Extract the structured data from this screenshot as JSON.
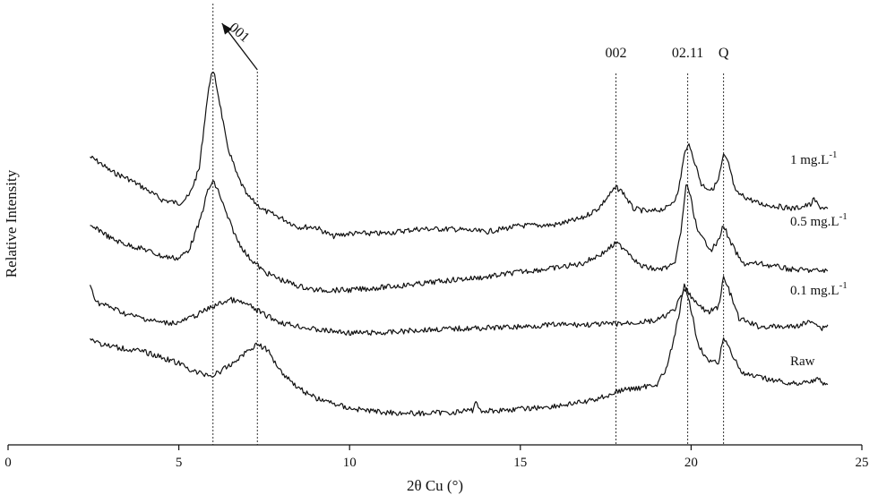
{
  "chart_data": {
    "type": "line",
    "title": "",
    "xlabel": "2θ Cu (°)",
    "ylabel": "Relative Intensity",
    "xlim": [
      0,
      25
    ],
    "xticks": [
      0,
      5,
      10,
      15,
      20,
      25
    ],
    "ylim": [
      0,
      1
    ],
    "y_ticks_shown": false,
    "grid": false,
    "legend": "labels to the right of each curve",
    "peak_markers": [
      {
        "label": "001",
        "x": 6.0,
        "arrow_from_x": 7.3
      },
      {
        "label": "",
        "x": 7.3
      },
      {
        "label": "002",
        "x": 17.8
      },
      {
        "label": "02.11",
        "x": 19.9
      },
      {
        "label": "Q",
        "x": 20.95
      }
    ],
    "series": [
      {
        "name": "1 mg.L",
        "name_superscript": "-1",
        "points": [
          [
            2.4,
            0.707
          ],
          [
            2.7,
            0.692
          ],
          [
            3.0,
            0.672
          ],
          [
            3.5,
            0.654
          ],
          [
            4.0,
            0.63
          ],
          [
            4.5,
            0.602
          ],
          [
            5.0,
            0.593
          ],
          [
            5.3,
            0.611
          ],
          [
            5.6,
            0.679
          ],
          [
            5.8,
            0.828
          ],
          [
            5.95,
            0.915
          ],
          [
            6.05,
            0.905
          ],
          [
            6.2,
            0.84
          ],
          [
            6.4,
            0.74
          ],
          [
            6.7,
            0.663
          ],
          [
            7.0,
            0.612
          ],
          [
            7.5,
            0.575
          ],
          [
            8.0,
            0.557
          ],
          [
            8.5,
            0.535
          ],
          [
            9.0,
            0.535
          ],
          [
            9.5,
            0.512
          ],
          [
            10.0,
            0.519
          ],
          [
            11.0,
            0.519
          ],
          [
            12.0,
            0.53
          ],
          [
            13.0,
            0.53
          ],
          [
            14.0,
            0.523
          ],
          [
            15.0,
            0.538
          ],
          [
            16.0,
            0.54
          ],
          [
            16.8,
            0.556
          ],
          [
            17.3,
            0.582
          ],
          [
            17.6,
            0.613
          ],
          [
            17.8,
            0.632
          ],
          [
            18.0,
            0.621
          ],
          [
            18.3,
            0.58
          ],
          [
            18.8,
            0.572
          ],
          [
            19.3,
            0.582
          ],
          [
            19.6,
            0.612
          ],
          [
            19.8,
            0.71
          ],
          [
            19.9,
            0.74
          ],
          [
            20.05,
            0.71
          ],
          [
            20.3,
            0.64
          ],
          [
            20.6,
            0.625
          ],
          [
            20.8,
            0.65
          ],
          [
            20.95,
            0.711
          ],
          [
            21.1,
            0.69
          ],
          [
            21.3,
            0.62
          ],
          [
            22.0,
            0.592
          ],
          [
            23.0,
            0.58
          ],
          [
            23.5,
            0.59
          ],
          [
            23.6,
            0.603
          ],
          [
            23.75,
            0.585
          ],
          [
            24.0,
            0.58
          ]
        ]
      },
      {
        "name": "0.5 mg.L",
        "name_superscript": "-1",
        "points": [
          [
            2.4,
            0.534
          ],
          [
            2.7,
            0.527
          ],
          [
            3.0,
            0.507
          ],
          [
            3.5,
            0.491
          ],
          [
            4.0,
            0.48
          ],
          [
            4.5,
            0.463
          ],
          [
            5.0,
            0.458
          ],
          [
            5.3,
            0.48
          ],
          [
            5.6,
            0.545
          ],
          [
            5.85,
            0.625
          ],
          [
            6.0,
            0.646
          ],
          [
            6.15,
            0.625
          ],
          [
            6.4,
            0.565
          ],
          [
            6.7,
            0.505
          ],
          [
            7.0,
            0.465
          ],
          [
            7.5,
            0.425
          ],
          [
            8.0,
            0.405
          ],
          [
            8.5,
            0.39
          ],
          [
            9.0,
            0.38
          ],
          [
            10.0,
            0.38
          ],
          [
            11.0,
            0.387
          ],
          [
            12.0,
            0.395
          ],
          [
            13.0,
            0.405
          ],
          [
            14.0,
            0.412
          ],
          [
            15.0,
            0.425
          ],
          [
            16.0,
            0.434
          ],
          [
            16.8,
            0.445
          ],
          [
            17.4,
            0.47
          ],
          [
            17.8,
            0.495
          ],
          [
            18.1,
            0.48
          ],
          [
            18.5,
            0.44
          ],
          [
            19.0,
            0.43
          ],
          [
            19.5,
            0.44
          ],
          [
            19.7,
            0.52
          ],
          [
            19.85,
            0.64
          ],
          [
            19.95,
            0.62
          ],
          [
            20.2,
            0.52
          ],
          [
            20.6,
            0.48
          ],
          [
            20.8,
            0.5
          ],
          [
            20.95,
            0.542
          ],
          [
            21.1,
            0.505
          ],
          [
            21.5,
            0.445
          ],
          [
            22.0,
            0.445
          ],
          [
            23.0,
            0.43
          ],
          [
            24.0,
            0.427
          ]
        ]
      },
      {
        "name": "0.1 mg.L",
        "name_superscript": "-1",
        "points": [
          [
            2.4,
            0.392
          ],
          [
            2.6,
            0.35
          ],
          [
            3.0,
            0.338
          ],
          [
            3.5,
            0.32
          ],
          [
            4.0,
            0.31
          ],
          [
            4.5,
            0.3
          ],
          [
            5.0,
            0.3
          ],
          [
            5.5,
            0.318
          ],
          [
            6.0,
            0.34
          ],
          [
            6.5,
            0.357
          ],
          [
            7.0,
            0.345
          ],
          [
            7.5,
            0.32
          ],
          [
            8.0,
            0.3
          ],
          [
            9.0,
            0.283
          ],
          [
            10.0,
            0.275
          ],
          [
            11.0,
            0.275
          ],
          [
            12.0,
            0.282
          ],
          [
            13.0,
            0.285
          ],
          [
            14.0,
            0.287
          ],
          [
            15.0,
            0.29
          ],
          [
            16.0,
            0.295
          ],
          [
            17.0,
            0.295
          ],
          [
            18.0,
            0.298
          ],
          [
            19.0,
            0.305
          ],
          [
            19.5,
            0.33
          ],
          [
            19.8,
            0.378
          ],
          [
            19.9,
            0.38
          ],
          [
            20.1,
            0.35
          ],
          [
            20.5,
            0.325
          ],
          [
            20.8,
            0.34
          ],
          [
            20.95,
            0.41
          ],
          [
            21.1,
            0.382
          ],
          [
            21.4,
            0.31
          ],
          [
            22.0,
            0.29
          ],
          [
            23.0,
            0.29
          ],
          [
            23.6,
            0.305
          ],
          [
            23.8,
            0.285
          ],
          [
            24.0,
            0.295
          ]
        ]
      },
      {
        "name": "Raw",
        "name_superscript": "",
        "points": [
          [
            2.4,
            0.261
          ],
          [
            2.8,
            0.245
          ],
          [
            3.5,
            0.235
          ],
          [
            4.0,
            0.228
          ],
          [
            4.5,
            0.215
          ],
          [
            5.0,
            0.2
          ],
          [
            5.5,
            0.178
          ],
          [
            6.0,
            0.17
          ],
          [
            6.5,
            0.195
          ],
          [
            7.0,
            0.23
          ],
          [
            7.3,
            0.248
          ],
          [
            7.6,
            0.232
          ],
          [
            8.0,
            0.18
          ],
          [
            8.5,
            0.14
          ],
          [
            9.0,
            0.115
          ],
          [
            10.0,
            0.09
          ],
          [
            11.0,
            0.08
          ],
          [
            12.0,
            0.077
          ],
          [
            13.0,
            0.08
          ],
          [
            13.6,
            0.085
          ],
          [
            13.7,
            0.11
          ],
          [
            13.8,
            0.085
          ],
          [
            14.0,
            0.083
          ],
          [
            15.0,
            0.088
          ],
          [
            16.0,
            0.095
          ],
          [
            17.0,
            0.107
          ],
          [
            17.5,
            0.12
          ],
          [
            18.0,
            0.135
          ],
          [
            18.5,
            0.14
          ],
          [
            19.0,
            0.15
          ],
          [
            19.3,
            0.19
          ],
          [
            19.6,
            0.3
          ],
          [
            19.8,
            0.39
          ],
          [
            19.95,
            0.35
          ],
          [
            20.2,
            0.25
          ],
          [
            20.5,
            0.205
          ],
          [
            20.8,
            0.2
          ],
          [
            20.95,
            0.265
          ],
          [
            21.1,
            0.24
          ],
          [
            21.5,
            0.175
          ],
          [
            22.0,
            0.165
          ],
          [
            23.0,
            0.15
          ],
          [
            23.7,
            0.16
          ],
          [
            24.0,
            0.148
          ]
        ]
      }
    ]
  }
}
